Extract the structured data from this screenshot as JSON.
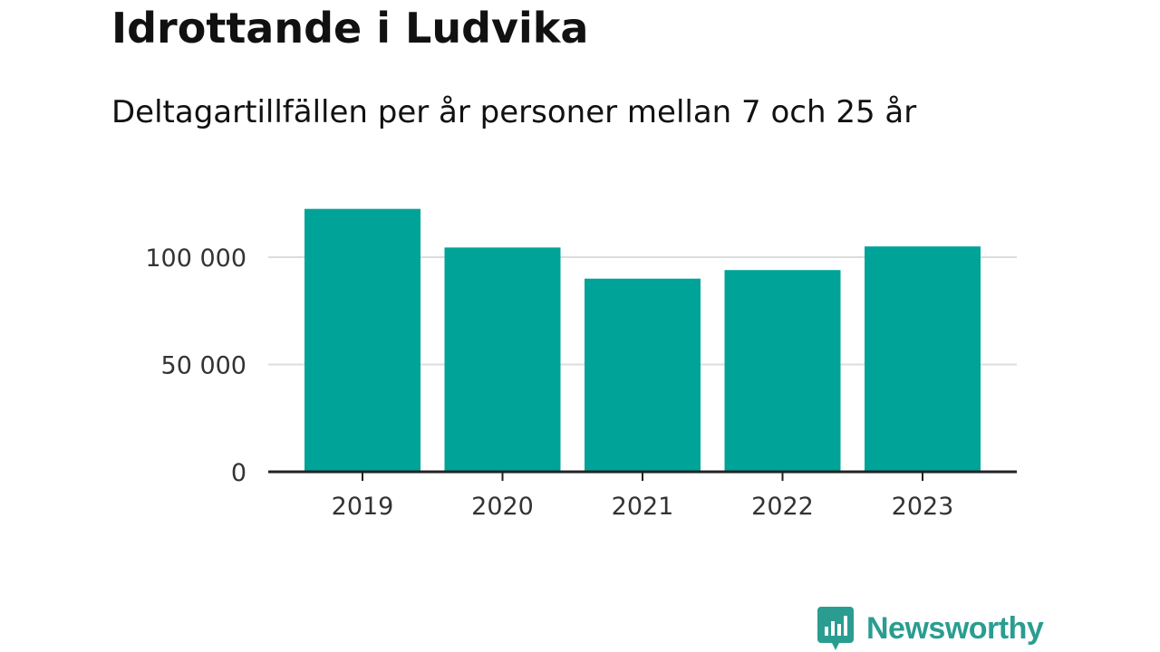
{
  "title": "Idrottande i Ludvika",
  "subtitle": "Deltagartillfällen per år personer mellan 7 och 25 år",
  "brand": {
    "name": "Newsworthy"
  },
  "colors": {
    "bar": "#00a398",
    "axis": "#222222",
    "grid": "#dddddd",
    "tick_text": "#333333",
    "brand": "#2a9d90"
  },
  "chart_data": {
    "type": "bar",
    "categories": [
      "2019",
      "2020",
      "2021",
      "2022",
      "2023"
    ],
    "values": [
      122500,
      104500,
      90000,
      94000,
      105000
    ],
    "ylim": [
      0,
      125000
    ],
    "yticks": [
      0,
      50000,
      100000
    ],
    "ytick_labels": [
      "0",
      "50 000",
      "100 000"
    ],
    "grid": true,
    "legend": false
  }
}
